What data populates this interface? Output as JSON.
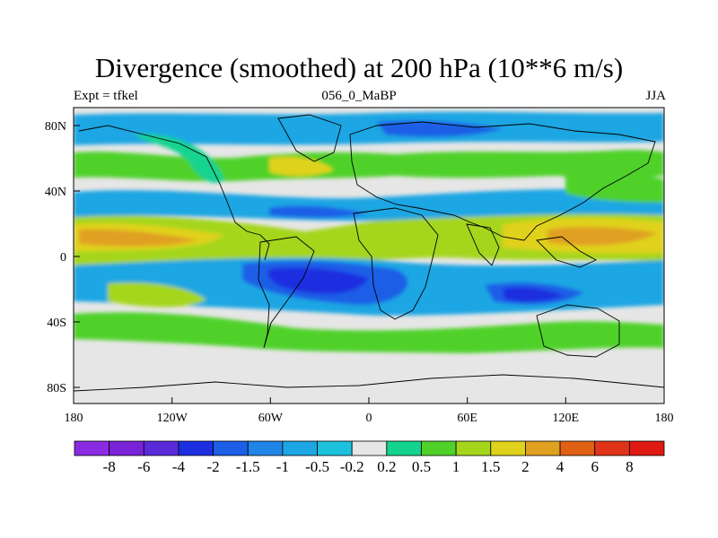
{
  "title": "Divergence (smoothed) at 200 hPa (10**6 m/s)",
  "left_subtitle": "Expt = tfkel",
  "center_subtitle": "056_0_MaBP",
  "right_subtitle": "JJA",
  "axes": {
    "lat_ticks": [
      "80N",
      "40N",
      "0",
      "40S",
      "80S"
    ],
    "lon_ticks": [
      "180",
      "120W",
      "60W",
      "0",
      "60E",
      "120E",
      "180"
    ],
    "lon_range": [
      -180,
      180
    ],
    "lat_range": [
      -90,
      90
    ]
  },
  "colorbar": {
    "labels": [
      "-8",
      "-6",
      "-4",
      "-2",
      "-1.5",
      "-1",
      "-0.5",
      "-0.2",
      "0.2",
      "0.5",
      "1",
      "1.5",
      "2",
      "4",
      "6",
      "8"
    ],
    "colors": [
      "#8a2be2",
      "#7a22d8",
      "#5a2ad8",
      "#1c2fe0",
      "#1c5fe6",
      "#1f85e6",
      "#1ca6e3",
      "#1cc1dc",
      "#e6e6e6",
      "#13d38f",
      "#4fd12a",
      "#a5d61c",
      "#e0d21a",
      "#e0a020",
      "#e06014",
      "#e03418",
      "#e01a12"
    ]
  },
  "map_data": {
    "colors": {
      "neutral": "#e6e6e6",
      "strong_neg": "#1c2fe0",
      "mid_neg": "#1c5fe6",
      "weak_neg": "#1ca6e3",
      "faint_neg": "#1cc1dc",
      "faint_pos": "#13d38f",
      "weak_pos": "#4fd12a",
      "mid_pos": "#a5d61c",
      "pos": "#e0d21a",
      "strong_pos": "#e0a020",
      "very_strong_pos": "#e06014"
    }
  }
}
